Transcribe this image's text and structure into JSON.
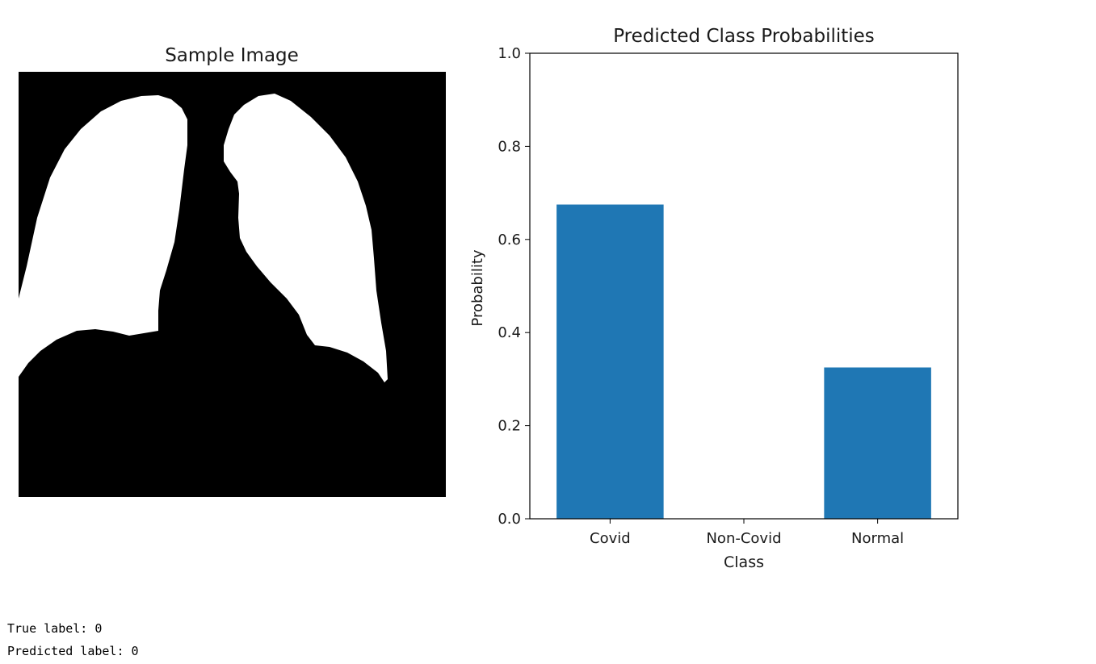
{
  "image_panel": {
    "title": "Sample Image",
    "background_color": "#000000",
    "mask_color": "#ffffff"
  },
  "chart_data": {
    "type": "bar",
    "title": "Predicted Class Probabilities",
    "xlabel": "Class",
    "ylabel": "Probability",
    "categories": [
      "Covid",
      "Non-Covid",
      "Normal"
    ],
    "values": [
      0.675,
      0.0,
      0.325
    ],
    "ylim": [
      0,
      1.0
    ],
    "yticks": [
      "0.0",
      "0.2",
      "0.4",
      "0.6",
      "0.8",
      "1.0"
    ],
    "bar_color": "#1f77b4",
    "grid": false,
    "legend": "none"
  },
  "output": {
    "true_label": "True label: 0",
    "predicted_label": "Predicted label: 0"
  }
}
